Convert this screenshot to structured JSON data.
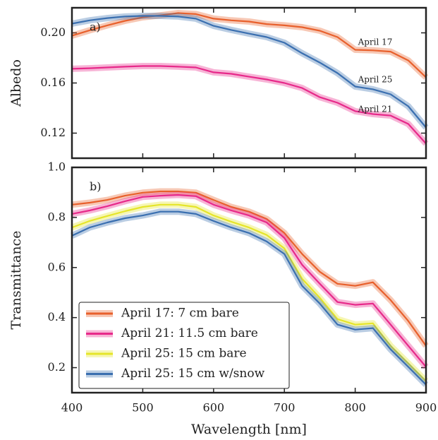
{
  "chart_data": [
    {
      "type": "line",
      "ylabel": "Albedo",
      "panel_label": "a)",
      "x": [
        400,
        425,
        450,
        475,
        500,
        525,
        550,
        575,
        600,
        625,
        650,
        675,
        700,
        725,
        750,
        775,
        800,
        825,
        850,
        875,
        900
      ],
      "xlim": [
        400,
        900
      ],
      "xticks": [
        400,
        500,
        600,
        700,
        800,
        900
      ],
      "ylim": [
        0.1,
        0.22
      ],
      "yticks": [
        0.12,
        0.16,
        {
          "value": 0.2,
          "label": "0.20"
        }
      ],
      "series": [
        {
          "name": "April 17",
          "color": "#e8602c",
          "values": [
            0.1977,
            0.202,
            0.206,
            0.2096,
            0.2124,
            0.214,
            0.2158,
            0.215,
            0.2113,
            0.21,
            0.209,
            0.207,
            0.206,
            0.2045,
            0.2017,
            0.1966,
            0.1865,
            0.186,
            0.185,
            0.178,
            0.1645
          ]
        },
        {
          "name": "April 25",
          "color": "#3a6fb0",
          "values": [
            0.2073,
            0.21,
            0.2118,
            0.213,
            0.2135,
            0.2135,
            0.213,
            0.2113,
            0.2056,
            0.2023,
            0.1994,
            0.1966,
            0.1921,
            0.1837,
            0.1763,
            0.1679,
            0.1572,
            0.155,
            0.151,
            0.1414,
            0.1245
          ]
        },
        {
          "name": "April 21",
          "color": "#e7298a",
          "values": [
            0.1713,
            0.1718,
            0.1724,
            0.173,
            0.1735,
            0.1735,
            0.173,
            0.1724,
            0.1685,
            0.1673,
            0.165,
            0.1628,
            0.16,
            0.156,
            0.1487,
            0.1442,
            0.1375,
            0.1352,
            0.134,
            0.1273,
            0.1116
          ]
        }
      ]
    },
    {
      "type": "line",
      "ylabel": "Transmittance",
      "xlabel": "Wavelength [nm]",
      "panel_label": "b)",
      "x": [
        400,
        425,
        450,
        475,
        500,
        525,
        550,
        575,
        600,
        625,
        650,
        675,
        700,
        725,
        750,
        775,
        800,
        825,
        850,
        875,
        900
      ],
      "xlim": [
        400,
        900
      ],
      "xticks": [
        400,
        500,
        600,
        700,
        800,
        900
      ],
      "ylim": [
        0.1,
        1.0
      ],
      "yticks": [
        0.2,
        0.4,
        0.6,
        0.8,
        {
          "value": 1.0,
          "label": "1.0"
        }
      ],
      "legend": "lower left",
      "series": [
        {
          "name": "April 17: 7 cm bare",
          "color": "#e8602c",
          "values": [
            0.851,
            0.859,
            0.87,
            0.887,
            0.899,
            0.904,
            0.904,
            0.899,
            0.87,
            0.842,
            0.823,
            0.794,
            0.738,
            0.654,
            0.583,
            0.535,
            0.527,
            0.541,
            0.47,
            0.386,
            0.287
          ]
        },
        {
          "name": "April 21: 11.5 cm bare",
          "color": "#e7298a",
          "values": [
            0.814,
            0.828,
            0.845,
            0.865,
            0.882,
            0.887,
            0.89,
            0.885,
            0.851,
            0.828,
            0.808,
            0.78,
            0.718,
            0.611,
            0.535,
            0.462,
            0.451,
            0.456,
            0.372,
            0.287,
            0.203
          ]
        },
        {
          "name": "April 25: 15 cm bare",
          "color": "#e5e52a",
          "values": [
            0.76,
            0.786,
            0.806,
            0.825,
            0.842,
            0.851,
            0.851,
            0.842,
            0.808,
            0.783,
            0.76,
            0.73,
            0.676,
            0.555,
            0.479,
            0.394,
            0.372,
            0.377,
            0.287,
            0.217,
            0.146
          ]
        },
        {
          "name": "April 25: 15 cm w/snow",
          "color": "#3a6fb0",
          "values": [
            0.727,
            0.76,
            0.78,
            0.797,
            0.808,
            0.823,
            0.823,
            0.814,
            0.786,
            0.76,
            0.738,
            0.704,
            0.654,
            0.527,
            0.456,
            0.372,
            0.352,
            0.358,
            0.273,
            0.203,
            0.132
          ]
        }
      ]
    }
  ]
}
